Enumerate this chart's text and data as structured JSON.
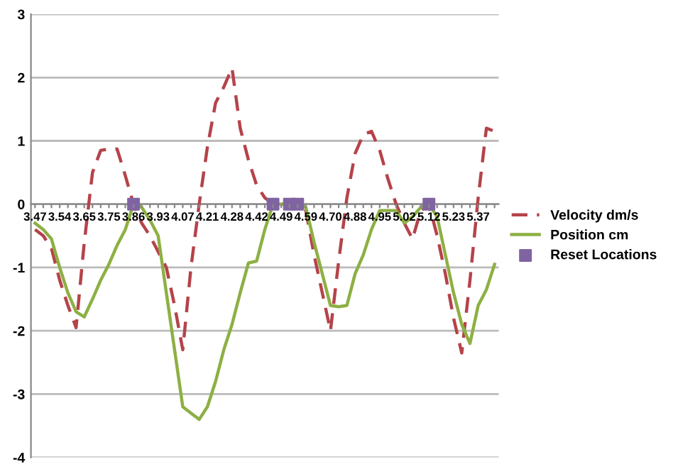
{
  "chart_data": {
    "type": "line",
    "categories": [
      "3.47",
      null,
      null,
      "3.54",
      null,
      null,
      "3.65",
      null,
      null,
      "3.75",
      null,
      null,
      "3.86",
      null,
      null,
      "3.93",
      null,
      null,
      "4.07",
      null,
      null,
      "4.21",
      null,
      null,
      "4.28",
      null,
      null,
      "4.42",
      null,
      null,
      "4.49",
      null,
      null,
      "4.59",
      null,
      null,
      "4.70",
      null,
      null,
      "4.88",
      null,
      null,
      "4.95",
      null,
      null,
      "5.02",
      null,
      null,
      "5.12",
      null,
      null,
      "5.23",
      null,
      null,
      "5.37",
      null,
      null
    ],
    "series": [
      {
        "name": "Velocity dm/s",
        "color": "#b5434a",
        "line_style": "dashed",
        "values": [
          -0.4,
          -0.5,
          -0.7,
          -1.2,
          -1.6,
          -1.95,
          -0.6,
          0.5,
          0.85,
          0.87,
          0.87,
          0.45,
          0,
          -0.3,
          -0.5,
          -0.75,
          -1.0,
          -1.6,
          -2.3,
          -1.0,
          0,
          0.9,
          1.6,
          1.85,
          2.15,
          1.2,
          0.7,
          0.3,
          0.1,
          0,
          0,
          0,
          0,
          -0.1,
          -0.8,
          -1.4,
          -2.0,
          -0.9,
          0.1,
          0.8,
          1.1,
          1.15,
          0.85,
          0.4,
          0,
          -0.3,
          -0.55,
          -0.1,
          0,
          -0.5,
          -1.1,
          -1.8,
          -2.35,
          -1.2,
          0.1,
          1.2,
          1.15
        ]
      },
      {
        "name": "Position cm",
        "color": "#8db043",
        "line_style": "solid",
        "values": [
          -0.3,
          -0.4,
          -0.55,
          -1.0,
          -1.4,
          -1.7,
          -1.78,
          -1.5,
          -1.2,
          -0.95,
          -0.65,
          -0.4,
          0,
          -0.05,
          -0.25,
          -0.5,
          -1.4,
          -2.3,
          -3.2,
          -3.3,
          -3.4,
          -3.2,
          -2.8,
          -2.3,
          -1.9,
          -1.4,
          -0.93,
          -0.9,
          -0.4,
          0,
          0,
          0,
          0,
          -0.05,
          -0.6,
          -1.1,
          -1.6,
          -1.62,
          -1.6,
          -1.1,
          -0.8,
          -0.4,
          -0.1,
          -0.1,
          -0.1,
          -0.3,
          -0.2,
          -0.05,
          0,
          -0.2,
          -0.8,
          -1.4,
          -1.9,
          -2.2,
          -1.6,
          -1.35,
          -0.95
        ]
      },
      {
        "name": "Reset Locations",
        "color": "#8064a2",
        "type": "scatter",
        "marker": "square",
        "values": [
          null,
          null,
          null,
          null,
          null,
          null,
          null,
          null,
          null,
          null,
          null,
          null,
          0,
          null,
          null,
          null,
          null,
          null,
          null,
          null,
          null,
          null,
          null,
          null,
          null,
          null,
          null,
          null,
          null,
          0,
          null,
          0,
          0,
          null,
          null,
          null,
          null,
          null,
          null,
          null,
          null,
          null,
          null,
          null,
          null,
          null,
          null,
          null,
          0,
          null,
          null,
          null,
          null,
          null,
          null,
          null,
          null
        ]
      }
    ],
    "ylim": [
      -4,
      3
    ],
    "yticks": [
      -4,
      -3,
      -2,
      -1,
      0,
      1,
      2,
      3
    ],
    "grid": "y",
    "legend": "right"
  }
}
